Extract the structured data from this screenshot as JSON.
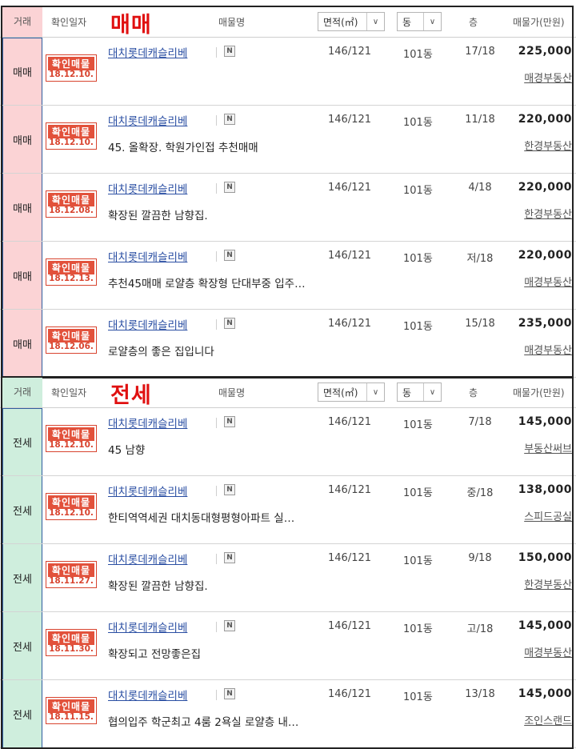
{
  "sale": {
    "header": {
      "type_label": "거래",
      "date_label": "확인일자",
      "section_title": "매매",
      "name_label": "매물명",
      "area_select": "면적(㎡)",
      "dong_select": "동",
      "floor_label": "층",
      "price_label": "매물가(만원)"
    },
    "rows": [
      {
        "type": "매매",
        "badge": "확인매물",
        "date": "18.12.10.",
        "title": "대치롯데캐슬리베",
        "desc": "",
        "area": "146/121",
        "dong": "101동",
        "floor": "17/18",
        "price": "225,000",
        "agency": "매경부동산"
      },
      {
        "type": "매매",
        "badge": "확인매물",
        "date": "18.12.10.",
        "title": "대치롯데캐슬리베",
        "desc": "45. 올확장. 학원가인접 추천매매",
        "area": "146/121",
        "dong": "101동",
        "floor": "11/18",
        "price": "220,000",
        "agency": "한경부동산"
      },
      {
        "type": "매매",
        "badge": "확인매물",
        "date": "18.12.08.",
        "title": "대치롯데캐슬리베",
        "desc": "확장된 깔끔한 남향집.",
        "area": "146/121",
        "dong": "101동",
        "floor": "4/18",
        "price": "220,000",
        "agency": "한경부동산"
      },
      {
        "type": "매매",
        "badge": "확인매물",
        "date": "18.12.13.",
        "title": "대치롯데캐슬리베",
        "desc": "추천45매매 로얄층 확장형 단대부중 입주…",
        "area": "146/121",
        "dong": "101동",
        "floor": "저/18",
        "price": "220,000",
        "agency": "매경부동산"
      },
      {
        "type": "매매",
        "badge": "확인매물",
        "date": "18.12.06.",
        "title": "대치롯데캐슬리베",
        "desc": "로얄층의 좋은 집입니다",
        "area": "146/121",
        "dong": "101동",
        "floor": "15/18",
        "price": "235,000",
        "agency": "매경부동산"
      }
    ]
  },
  "rent": {
    "header": {
      "type_label": "거래",
      "date_label": "확인일자",
      "section_title": "전세",
      "name_label": "매물명",
      "area_select": "면적(㎡)",
      "dong_select": "동",
      "floor_label": "층",
      "price_label": "매물가(만원)"
    },
    "rows": [
      {
        "type": "전세",
        "badge": "확인매물",
        "date": "18.12.10.",
        "title": "대치롯데캐슬리베",
        "desc": "45 남향",
        "area": "146/121",
        "dong": "101동",
        "floor": "7/18",
        "price": "145,000",
        "agency": "부동산써브"
      },
      {
        "type": "전세",
        "badge": "확인매물",
        "date": "18.12.10.",
        "title": "대치롯데캐슬리베",
        "desc": "한티역역세권 대치동대형평형아파트 실…",
        "area": "146/121",
        "dong": "101동",
        "floor": "중/18",
        "price": "138,000",
        "agency": "스피드공실"
      },
      {
        "type": "전세",
        "badge": "확인매물",
        "date": "18.11.27.",
        "title": "대치롯데캐슬리베",
        "desc": "확장된 깔끔한 남향집.",
        "area": "146/121",
        "dong": "101동",
        "floor": "9/18",
        "price": "150,000",
        "agency": "한경부동산"
      },
      {
        "type": "전세",
        "badge": "확인매물",
        "date": "18.11.30.",
        "title": "대치롯데캐슬리베",
        "desc": "확장되고 전망좋은집",
        "area": "146/121",
        "dong": "101동",
        "floor": "고/18",
        "price": "145,000",
        "agency": "매경부동산"
      },
      {
        "type": "전세",
        "badge": "확인매물",
        "date": "18.11.15.",
        "title": "대치롯데캐슬리베",
        "desc": "협의입주 학군최고 4룸 2욕실 로얄층 내…",
        "area": "146/121",
        "dong": "101동",
        "floor": "13/18",
        "price": "145,000",
        "agency": "조인스랜드"
      }
    ]
  },
  "icons": {
    "new": "N",
    "chevron": "∨"
  },
  "colors": {
    "sale_band": "#fbd3d5",
    "rent_band": "#cfeedd",
    "section_title": "#e01010",
    "badge": "#e2513b",
    "link": "#2b4fa3"
  }
}
